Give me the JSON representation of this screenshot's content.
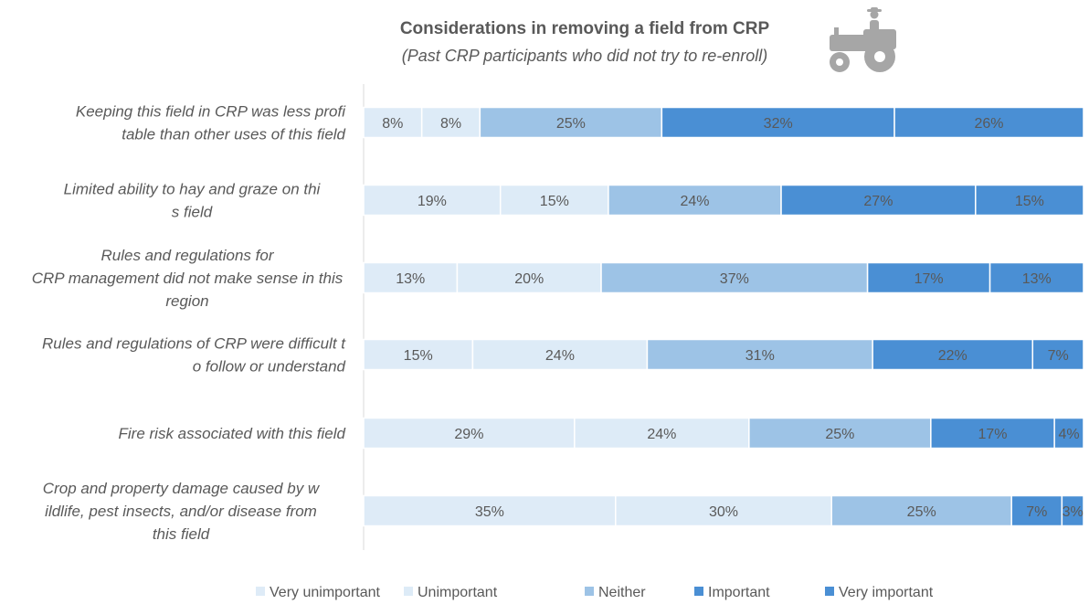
{
  "chart_data": {
    "type": "bar",
    "orientation": "horizontal",
    "stacked": true,
    "title": "Considerations in removing a field from CRP",
    "subtitle": "(Past CRP participants who did not try to re-enroll)",
    "categories": [
      "Keeping this field in CRP was less profitable than other uses of this field",
      "Limited ability to hay and graze on this field",
      "Rules and regulations for CRP management did not make sense in this region",
      "Rules and regulations of CRP were difficult to follow or understand",
      "Fire risk associated with this field",
      "Crop and property damage caused by wildlife, pest insects, and/or disease from this field"
    ],
    "series": [
      {
        "name": "Very unimportant",
        "color": "#DEEBF7",
        "values": [
          8,
          19,
          13,
          15,
          29,
          35
        ]
      },
      {
        "name": "Unimportant",
        "color": "#DDEBF7",
        "values": [
          8,
          15,
          20,
          24,
          24,
          30
        ]
      },
      {
        "name": "Neither",
        "color": "#9DC3E6",
        "values": [
          25,
          24,
          37,
          31,
          25,
          25
        ]
      },
      {
        "name": "Important",
        "color": "#4A8FD4",
        "values": [
          32,
          27,
          17,
          22,
          17,
          7
        ]
      },
      {
        "name": "Very important",
        "color": "#4A8FD4",
        "values": [
          26,
          15,
          13,
          7,
          4,
          3
        ]
      }
    ],
    "value_suffix": "%",
    "legend_position": "bottom",
    "grid": false,
    "icon": "tractor-with-farmer-icon"
  }
}
